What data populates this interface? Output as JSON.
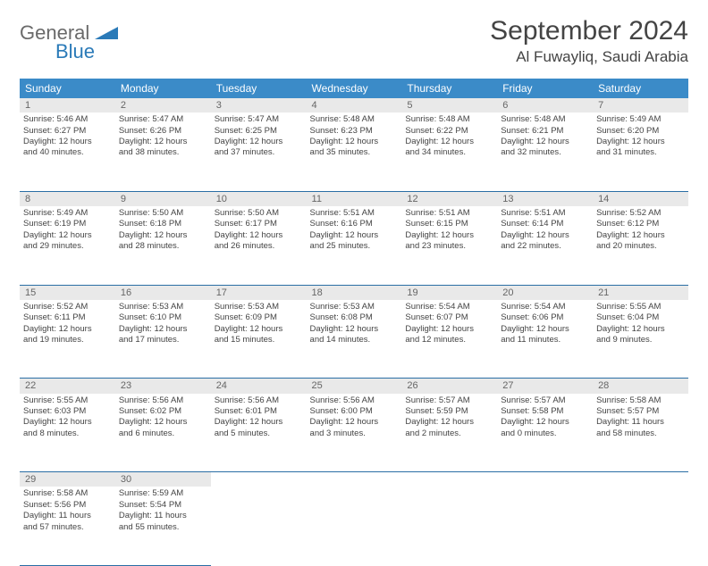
{
  "brand": {
    "name1": "General",
    "name2": "Blue"
  },
  "title": "September 2024",
  "location": "Al Fuwayliq, Saudi Arabia",
  "colors": {
    "header_bg": "#3b8bc8",
    "header_text": "#ffffff",
    "daynum_bg": "#e9e9e9",
    "border": "#2a6ea5",
    "logo_gray": "#6a6a6a",
    "logo_blue": "#2a7ab8"
  },
  "weekdays": [
    "Sunday",
    "Monday",
    "Tuesday",
    "Wednesday",
    "Thursday",
    "Friday",
    "Saturday"
  ],
  "weeks": [
    {
      "nums": [
        "1",
        "2",
        "3",
        "4",
        "5",
        "6",
        "7"
      ],
      "cells": [
        {
          "sunrise": "Sunrise: 5:46 AM",
          "sunset": "Sunset: 6:27 PM",
          "day1": "Daylight: 12 hours",
          "day2": "and 40 minutes."
        },
        {
          "sunrise": "Sunrise: 5:47 AM",
          "sunset": "Sunset: 6:26 PM",
          "day1": "Daylight: 12 hours",
          "day2": "and 38 minutes."
        },
        {
          "sunrise": "Sunrise: 5:47 AM",
          "sunset": "Sunset: 6:25 PM",
          "day1": "Daylight: 12 hours",
          "day2": "and 37 minutes."
        },
        {
          "sunrise": "Sunrise: 5:48 AM",
          "sunset": "Sunset: 6:23 PM",
          "day1": "Daylight: 12 hours",
          "day2": "and 35 minutes."
        },
        {
          "sunrise": "Sunrise: 5:48 AM",
          "sunset": "Sunset: 6:22 PM",
          "day1": "Daylight: 12 hours",
          "day2": "and 34 minutes."
        },
        {
          "sunrise": "Sunrise: 5:48 AM",
          "sunset": "Sunset: 6:21 PM",
          "day1": "Daylight: 12 hours",
          "day2": "and 32 minutes."
        },
        {
          "sunrise": "Sunrise: 5:49 AM",
          "sunset": "Sunset: 6:20 PM",
          "day1": "Daylight: 12 hours",
          "day2": "and 31 minutes."
        }
      ]
    },
    {
      "nums": [
        "8",
        "9",
        "10",
        "11",
        "12",
        "13",
        "14"
      ],
      "cells": [
        {
          "sunrise": "Sunrise: 5:49 AM",
          "sunset": "Sunset: 6:19 PM",
          "day1": "Daylight: 12 hours",
          "day2": "and 29 minutes."
        },
        {
          "sunrise": "Sunrise: 5:50 AM",
          "sunset": "Sunset: 6:18 PM",
          "day1": "Daylight: 12 hours",
          "day2": "and 28 minutes."
        },
        {
          "sunrise": "Sunrise: 5:50 AM",
          "sunset": "Sunset: 6:17 PM",
          "day1": "Daylight: 12 hours",
          "day2": "and 26 minutes."
        },
        {
          "sunrise": "Sunrise: 5:51 AM",
          "sunset": "Sunset: 6:16 PM",
          "day1": "Daylight: 12 hours",
          "day2": "and 25 minutes."
        },
        {
          "sunrise": "Sunrise: 5:51 AM",
          "sunset": "Sunset: 6:15 PM",
          "day1": "Daylight: 12 hours",
          "day2": "and 23 minutes."
        },
        {
          "sunrise": "Sunrise: 5:51 AM",
          "sunset": "Sunset: 6:14 PM",
          "day1": "Daylight: 12 hours",
          "day2": "and 22 minutes."
        },
        {
          "sunrise": "Sunrise: 5:52 AM",
          "sunset": "Sunset: 6:12 PM",
          "day1": "Daylight: 12 hours",
          "day2": "and 20 minutes."
        }
      ]
    },
    {
      "nums": [
        "15",
        "16",
        "17",
        "18",
        "19",
        "20",
        "21"
      ],
      "cells": [
        {
          "sunrise": "Sunrise: 5:52 AM",
          "sunset": "Sunset: 6:11 PM",
          "day1": "Daylight: 12 hours",
          "day2": "and 19 minutes."
        },
        {
          "sunrise": "Sunrise: 5:53 AM",
          "sunset": "Sunset: 6:10 PM",
          "day1": "Daylight: 12 hours",
          "day2": "and 17 minutes."
        },
        {
          "sunrise": "Sunrise: 5:53 AM",
          "sunset": "Sunset: 6:09 PM",
          "day1": "Daylight: 12 hours",
          "day2": "and 15 minutes."
        },
        {
          "sunrise": "Sunrise: 5:53 AM",
          "sunset": "Sunset: 6:08 PM",
          "day1": "Daylight: 12 hours",
          "day2": "and 14 minutes."
        },
        {
          "sunrise": "Sunrise: 5:54 AM",
          "sunset": "Sunset: 6:07 PM",
          "day1": "Daylight: 12 hours",
          "day2": "and 12 minutes."
        },
        {
          "sunrise": "Sunrise: 5:54 AM",
          "sunset": "Sunset: 6:06 PM",
          "day1": "Daylight: 12 hours",
          "day2": "and 11 minutes."
        },
        {
          "sunrise": "Sunrise: 5:55 AM",
          "sunset": "Sunset: 6:04 PM",
          "day1": "Daylight: 12 hours",
          "day2": "and 9 minutes."
        }
      ]
    },
    {
      "nums": [
        "22",
        "23",
        "24",
        "25",
        "26",
        "27",
        "28"
      ],
      "cells": [
        {
          "sunrise": "Sunrise: 5:55 AM",
          "sunset": "Sunset: 6:03 PM",
          "day1": "Daylight: 12 hours",
          "day2": "and 8 minutes."
        },
        {
          "sunrise": "Sunrise: 5:56 AM",
          "sunset": "Sunset: 6:02 PM",
          "day1": "Daylight: 12 hours",
          "day2": "and 6 minutes."
        },
        {
          "sunrise": "Sunrise: 5:56 AM",
          "sunset": "Sunset: 6:01 PM",
          "day1": "Daylight: 12 hours",
          "day2": "and 5 minutes."
        },
        {
          "sunrise": "Sunrise: 5:56 AM",
          "sunset": "Sunset: 6:00 PM",
          "day1": "Daylight: 12 hours",
          "day2": "and 3 minutes."
        },
        {
          "sunrise": "Sunrise: 5:57 AM",
          "sunset": "Sunset: 5:59 PM",
          "day1": "Daylight: 12 hours",
          "day2": "and 2 minutes."
        },
        {
          "sunrise": "Sunrise: 5:57 AM",
          "sunset": "Sunset: 5:58 PM",
          "day1": "Daylight: 12 hours",
          "day2": "and 0 minutes."
        },
        {
          "sunrise": "Sunrise: 5:58 AM",
          "sunset": "Sunset: 5:57 PM",
          "day1": "Daylight: 11 hours",
          "day2": "and 58 minutes."
        }
      ]
    },
    {
      "nums": [
        "29",
        "30",
        "",
        "",
        "",
        "",
        ""
      ],
      "cells": [
        {
          "sunrise": "Sunrise: 5:58 AM",
          "sunset": "Sunset: 5:56 PM",
          "day1": "Daylight: 11 hours",
          "day2": "and 57 minutes."
        },
        {
          "sunrise": "Sunrise: 5:59 AM",
          "sunset": "Sunset: 5:54 PM",
          "day1": "Daylight: 11 hours",
          "day2": "and 55 minutes."
        },
        null,
        null,
        null,
        null,
        null
      ]
    }
  ]
}
